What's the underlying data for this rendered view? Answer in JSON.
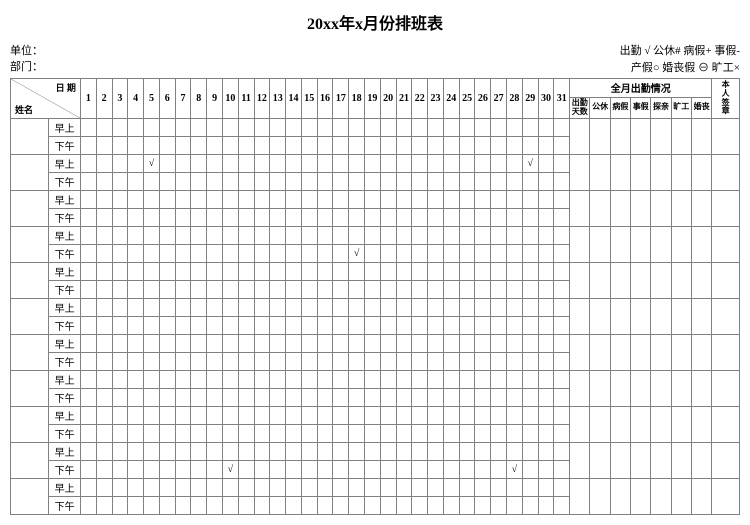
{
  "title": "20xx年x月份排班表",
  "header": {
    "unit_label": "单位：",
    "dept_label": "部门：",
    "legend_line1": "出勤 √   公休#   病假+   事假-",
    "legend_line2": "产假○  婚丧假 ⊖ 旷工×"
  },
  "table_head": {
    "diag_date": "日 期",
    "diag_name": "姓名",
    "days": [
      "1",
      "2",
      "3",
      "4",
      "5",
      "6",
      "7",
      "8",
      "9",
      "10",
      "11",
      "12",
      "13",
      "14",
      "15",
      "16",
      "17",
      "18",
      "19",
      "20",
      "21",
      "22",
      "23",
      "24",
      "25",
      "26",
      "27",
      "28",
      "29",
      "30",
      "31"
    ],
    "month_summary_title": "全月出勤情况",
    "summary_cols": [
      "出勤天数",
      "公休",
      "病假",
      "事假",
      "探亲",
      "旷工",
      "婚丧"
    ],
    "sign_col": "本人签章"
  },
  "shifts": {
    "am": "早上",
    "pm": "下午"
  },
  "rows": [
    {
      "name": "",
      "am": {},
      "pm": {}
    },
    {
      "name": "",
      "am": {
        "5": "√",
        "29": "√"
      },
      "pm": {}
    },
    {
      "name": "",
      "am": {},
      "pm": {}
    },
    {
      "name": "",
      "am": {},
      "pm": {
        "18": "√"
      }
    },
    {
      "name": "",
      "am": {},
      "pm": {}
    },
    {
      "name": "",
      "am": {},
      "pm": {}
    },
    {
      "name": "",
      "am": {},
      "pm": {}
    },
    {
      "name": "",
      "am": {},
      "pm": {}
    },
    {
      "name": "",
      "am": {},
      "pm": {}
    },
    {
      "name": "",
      "am": {},
      "pm": {
        "10": "√",
        "28": "√"
      }
    },
    {
      "name": "",
      "am": {},
      "pm": {}
    }
  ],
  "styling": {
    "border_color": "#808080",
    "background": "#ffffff",
    "text_color": "#000000",
    "title_fontsize": 16,
    "body_fontsize": 10,
    "check_mark": "√"
  }
}
